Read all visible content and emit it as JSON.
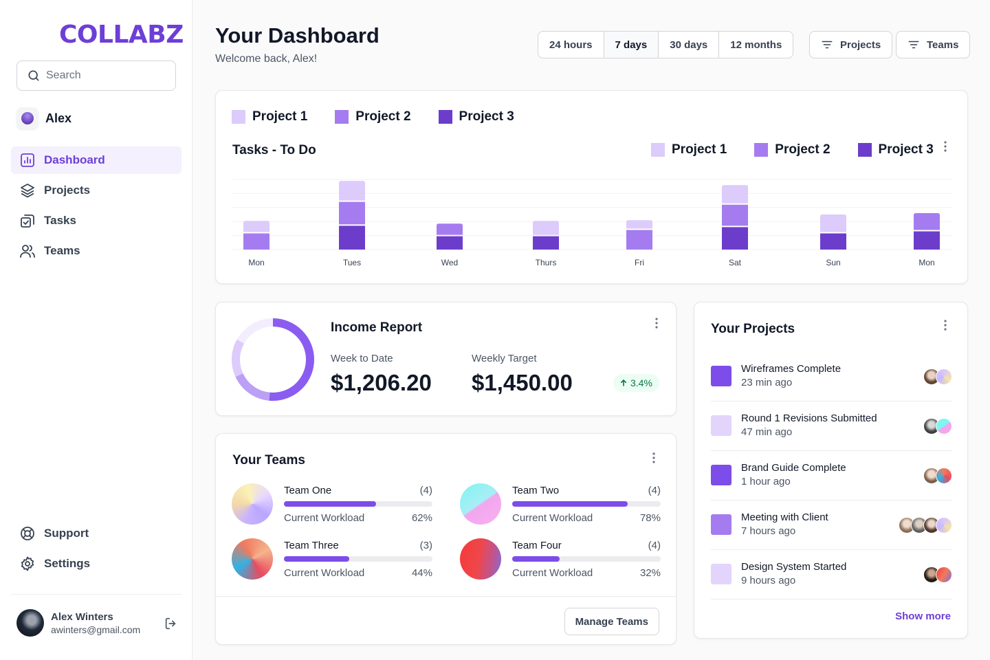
{
  "brand": {
    "logo_text": "COLLABZ",
    "accent": "#6D3FD6"
  },
  "sidebar": {
    "search_placeholder": "Search",
    "workspace_user": "Alex",
    "nav": [
      {
        "label": "Dashboard",
        "icon": "bar-chart-icon",
        "active": true
      },
      {
        "label": "Projects",
        "icon": "layers-icon"
      },
      {
        "label": "Tasks",
        "icon": "check-copy-icon"
      },
      {
        "label": "Teams",
        "icon": "users-icon"
      }
    ],
    "bottom_nav": [
      {
        "label": "Support",
        "icon": "lifebuoy-icon"
      },
      {
        "label": "Settings",
        "icon": "gear-icon"
      }
    ],
    "profile": {
      "name": "Alex Winters",
      "email": "awinters@gmail.com"
    }
  },
  "header": {
    "title": "Your Dashboard",
    "subtitle": "Welcome back, Alex!",
    "ranges": [
      "24 hours",
      "7 days",
      "30 days",
      "12 months"
    ],
    "selected_range": "7 days",
    "filters": [
      "Projects",
      "Teams"
    ]
  },
  "colors": {
    "project1": "#DCCBFB",
    "project2": "#A57CEF",
    "project3": "#6C3DCB"
  },
  "chart_data": {
    "type": "bar",
    "stacked": true,
    "title": "Tasks - To Do",
    "legend_top": [
      "Project 1",
      "Project 2",
      "Project 3"
    ],
    "categories": [
      "Mon",
      "Tues",
      "Wed",
      "Thurs",
      "Fri",
      "Sat",
      "Sun",
      "Mon"
    ],
    "series": [
      {
        "name": "Project 3",
        "color": "#6C3DCB",
        "values": [
          0,
          6.8,
          3.8,
          3.8,
          0,
          6.4,
          4.6,
          5.2
        ]
      },
      {
        "name": "Project 2",
        "color": "#A57CEF",
        "values": [
          4.6,
          6.4,
          3.2,
          0,
          5.6,
          6.0,
          0,
          4.8
        ]
      },
      {
        "name": "Project 1",
        "color": "#DCCBFB",
        "values": [
          3.2,
          5.6,
          0,
          4.0,
          2.4,
          5.2,
          5.0,
          0
        ]
      }
    ],
    "ylim": [
      0,
      20
    ],
    "grid": true
  },
  "income": {
    "title": "Income Report",
    "week_label": "Week to Date",
    "week_value": "$1,206.20",
    "target_label": "Weekly Target",
    "target_value": "$1,450.00",
    "change": "3.4%",
    "progress_fraction": 0.83
  },
  "teams": {
    "title": "Your Teams",
    "workload_label": "Current Workload",
    "manage_label": "Manage Teams",
    "items": [
      {
        "name": "Team One",
        "count": "(4)",
        "workload_pct": "62%",
        "workload": 62
      },
      {
        "name": "Team Two",
        "count": "(4)",
        "workload_pct": "78%",
        "workload": 78
      },
      {
        "name": "Team Three",
        "count": "(3)",
        "workload_pct": "44%",
        "workload": 44
      },
      {
        "name": "Team Four",
        "count": "(4)",
        "workload_pct": "32%",
        "workload": 32
      }
    ]
  },
  "projects": {
    "title": "Your Projects",
    "show_more": "Show more",
    "items": [
      {
        "name": "Wireframes Complete",
        "time": "23 min ago",
        "color": "#7C4DE8"
      },
      {
        "name": "Round 1 Revisions Submitted",
        "time": "47 min ago",
        "color": "#E3D4FC"
      },
      {
        "name": "Brand Guide Complete",
        "time": "1 hour ago",
        "color": "#7C4DE8"
      },
      {
        "name": "Meeting with Client",
        "time": "7 hours ago",
        "color": "#A57CEF"
      },
      {
        "name": "Design System Started",
        "time": "9 hours ago",
        "color": "#E3D4FC"
      }
    ]
  }
}
